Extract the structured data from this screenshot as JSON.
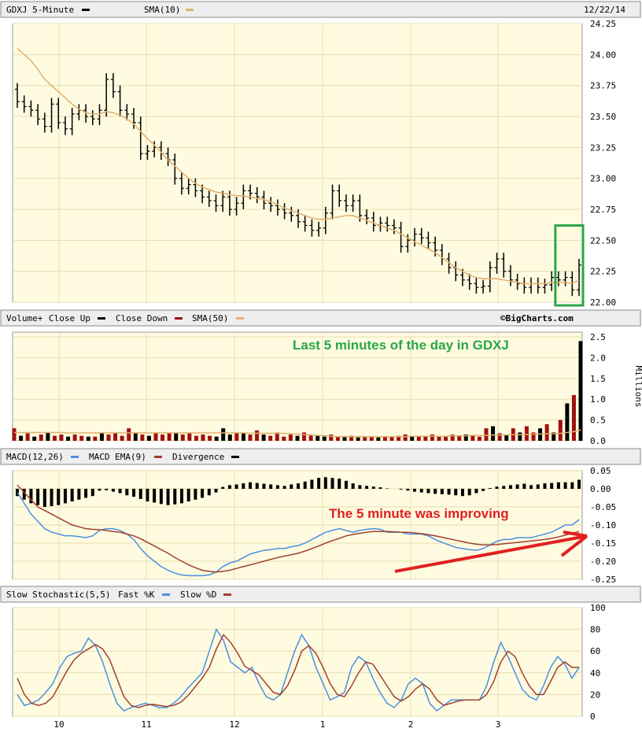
{
  "chart_data": [
    {
      "type": "ohlc",
      "header_label": "GDXJ 5-Minute",
      "sma_label": "SMA(10)",
      "date": "12/22/14",
      "y_ticks": [
        "24.25",
        "24.00",
        "23.75",
        "23.50",
        "23.25",
        "23.00",
        "22.75",
        "22.50",
        "22.25",
        "22.00"
      ],
      "ylim": [
        22.0,
        24.25
      ],
      "x_ticks": [
        "10",
        "11",
        "12",
        "1",
        "2",
        "3"
      ],
      "colors": {
        "bars": "#000000",
        "sma": "#e0b070",
        "panel_bg": "#fffbe0",
        "grid": "#ece4b8",
        "highlight": "#2aa64a"
      },
      "close": [
        23.62,
        23.58,
        23.55,
        23.48,
        23.42,
        23.6,
        23.45,
        23.4,
        23.52,
        23.55,
        23.5,
        23.48,
        23.55,
        23.8,
        23.7,
        23.55,
        23.52,
        23.45,
        23.2,
        23.22,
        23.25,
        23.2,
        23.15,
        23.0,
        22.92,
        22.95,
        22.9,
        22.85,
        22.82,
        22.78,
        22.85,
        22.75,
        22.8,
        22.9,
        22.88,
        22.85,
        22.8,
        22.78,
        22.75,
        22.72,
        22.7,
        22.65,
        22.62,
        22.58,
        22.6,
        22.72,
        22.9,
        22.82,
        22.78,
        22.82,
        22.7,
        22.68,
        22.62,
        22.64,
        22.62,
        22.6,
        22.45,
        22.5,
        22.55,
        22.52,
        22.48,
        22.42,
        22.35,
        22.28,
        22.22,
        22.18,
        22.15,
        22.12,
        22.13,
        22.28,
        22.35,
        22.25,
        22.18,
        22.15,
        22.12,
        22.15,
        22.12,
        22.14,
        22.2,
        22.18,
        22.2,
        22.1,
        22.3
      ],
      "sma": [
        24.05,
        24.0,
        23.95,
        23.88,
        23.8,
        23.75,
        23.7,
        23.65,
        23.6,
        23.56,
        23.53,
        23.52,
        23.52,
        23.54,
        23.53,
        23.51,
        23.48,
        23.44,
        23.38,
        23.32,
        23.27,
        23.21,
        23.15,
        23.1,
        23.05,
        23.0,
        22.96,
        22.93,
        22.91,
        22.89,
        22.88,
        22.87,
        22.86,
        22.86,
        22.85,
        22.84,
        22.83,
        22.81,
        22.79,
        22.76,
        22.74,
        22.72,
        22.7,
        22.68,
        22.67,
        22.67,
        22.68,
        22.69,
        22.7,
        22.7,
        22.68,
        22.66,
        22.64,
        22.62,
        22.6,
        22.58,
        22.55,
        22.52,
        22.49,
        22.46,
        22.43,
        22.4,
        22.36,
        22.32,
        22.28,
        22.25,
        22.22,
        22.2,
        22.19,
        22.19,
        22.19,
        22.18,
        22.17,
        22.16,
        22.15,
        22.15,
        22.15,
        22.15,
        22.16,
        22.16,
        22.16,
        22.15,
        22.18
      ],
      "annotation": "",
      "highlight_box": {
        "from_bar": 79,
        "to_bar": 82,
        "low": 22.0,
        "high": 22.62
      }
    },
    {
      "type": "volume",
      "header_label": "Volume+",
      "legend": [
        "Close Up",
        "Close Down",
        "SMA(50)"
      ],
      "watermark": "©BigCharts.com",
      "y_ticks": [
        "2.5",
        "2.0",
        "1.5",
        "1.0",
        "0.5",
        "0.0"
      ],
      "ylim": [
        0,
        2.5
      ],
      "units": "Millions",
      "annotation": "Last 5 minutes of the day in GDXJ",
      "colors": {
        "up": "#000000",
        "down": "#a01010",
        "sma": "#e0b070"
      },
      "values": [
        0.3,
        0.12,
        0.18,
        0.1,
        0.15,
        0.2,
        0.12,
        0.15,
        0.1,
        0.15,
        0.12,
        0.1,
        0.1,
        0.2,
        0.15,
        0.18,
        0.12,
        0.3,
        0.2,
        0.15,
        0.12,
        0.2,
        0.15,
        0.18,
        0.2,
        0.15,
        0.18,
        0.12,
        0.15,
        0.12,
        0.1,
        0.3,
        0.15,
        0.2,
        0.18,
        0.15,
        0.25,
        0.15,
        0.12,
        0.2,
        0.1,
        0.15,
        0.12,
        0.2,
        0.15,
        0.12,
        0.1,
        0.15,
        0.1,
        0.1,
        0.12,
        0.08,
        0.1,
        0.1,
        0.08,
        0.1,
        0.1,
        0.12,
        0.15,
        0.12,
        0.12,
        0.1,
        0.15,
        0.12,
        0.1,
        0.15,
        0.12,
        0.15,
        0.12,
        0.1,
        0.3,
        0.35,
        0.18,
        0.15,
        0.3,
        0.2,
        0.35,
        0.2,
        0.3,
        0.4,
        0.2,
        0.5,
        0.9,
        1.1,
        2.4
      ],
      "up_flags": [
        0,
        1,
        0,
        1,
        0,
        1,
        0,
        0,
        1,
        0,
        0,
        1,
        0,
        1,
        0,
        0,
        0,
        0,
        1,
        0,
        1,
        0,
        0,
        0,
        1,
        0,
        0,
        0,
        0,
        0,
        1,
        1,
        1,
        0,
        1,
        0,
        0,
        1,
        0,
        0,
        0,
        0,
        1,
        0,
        0,
        1,
        1,
        0,
        0,
        1,
        0,
        1,
        0,
        0,
        1,
        0,
        0,
        0,
        0,
        1,
        0,
        0,
        0,
        0,
        0,
        0,
        0,
        1,
        0,
        0,
        0,
        1,
        0,
        1,
        0,
        1,
        0,
        0,
        1,
        0,
        1,
        0,
        1,
        0,
        1
      ],
      "sma": [
        0.2,
        0.2,
        0.2,
        0.2,
        0.2,
        0.2,
        0.2,
        0.2,
        0.19,
        0.19,
        0.19,
        0.19,
        0.19,
        0.19,
        0.19,
        0.19,
        0.19,
        0.19,
        0.19,
        0.19,
        0.19,
        0.19,
        0.19,
        0.19,
        0.19,
        0.19,
        0.19,
        0.19,
        0.19,
        0.19,
        0.19,
        0.19,
        0.19,
        0.19,
        0.19,
        0.18,
        0.18,
        0.18,
        0.18,
        0.18,
        0.18,
        0.17,
        0.16,
        0.15,
        0.14,
        0.13,
        0.12,
        0.11,
        0.1,
        0.1,
        0.1,
        0.1,
        0.1,
        0.1,
        0.1,
        0.1,
        0.1,
        0.1,
        0.1,
        0.11,
        0.11,
        0.11,
        0.11,
        0.11,
        0.11,
        0.12,
        0.12,
        0.12,
        0.13,
        0.13,
        0.13,
        0.14,
        0.14,
        0.14,
        0.15,
        0.15,
        0.15,
        0.16,
        0.16,
        0.17,
        0.17,
        0.18,
        0.2,
        0.22,
        0.26
      ]
    },
    {
      "type": "macd",
      "header_label": "MACD(12,26)",
      "legend": [
        "MACD EMA(9)",
        "Divergence"
      ],
      "y_ticks": [
        "0.05",
        "0.00",
        "-0.05",
        "-0.10",
        "-0.15",
        "-0.20",
        "-0.25"
      ],
      "ylim": [
        -0.25,
        0.05
      ],
      "annotation": "The 5 minute was improving",
      "colors": {
        "macd": "#4a90e0",
        "ema": "#a04030",
        "divergence": "#000000",
        "arrow": "#e02020"
      },
      "macd": [
        -0.01,
        -0.04,
        -0.07,
        -0.09,
        -0.11,
        -0.12,
        -0.125,
        -0.13,
        -0.13,
        -0.132,
        -0.135,
        -0.13,
        -0.115,
        -0.11,
        -0.11,
        -0.115,
        -0.125,
        -0.14,
        -0.165,
        -0.185,
        -0.2,
        -0.215,
        -0.225,
        -0.233,
        -0.238,
        -0.24,
        -0.24,
        -0.24,
        -0.238,
        -0.23,
        -0.215,
        -0.205,
        -0.2,
        -0.19,
        -0.18,
        -0.175,
        -0.17,
        -0.168,
        -0.165,
        -0.165,
        -0.16,
        -0.157,
        -0.15,
        -0.14,
        -0.13,
        -0.12,
        -0.115,
        -0.11,
        -0.115,
        -0.12,
        -0.115,
        -0.112,
        -0.11,
        -0.112,
        -0.12,
        -0.12,
        -0.12,
        -0.125,
        -0.125,
        -0.125,
        -0.13,
        -0.14,
        -0.148,
        -0.155,
        -0.162,
        -0.165,
        -0.168,
        -0.17,
        -0.165,
        -0.155,
        -0.145,
        -0.14,
        -0.14,
        -0.135,
        -0.135,
        -0.135,
        -0.13,
        -0.125,
        -0.12,
        -0.11,
        -0.1,
        -0.1,
        -0.085
      ],
      "ema": [
        0.01,
        -0.01,
        -0.03,
        -0.05,
        -0.06,
        -0.07,
        -0.08,
        -0.09,
        -0.1,
        -0.105,
        -0.11,
        -0.112,
        -0.113,
        -0.115,
        -0.118,
        -0.12,
        -0.125,
        -0.13,
        -0.138,
        -0.148,
        -0.158,
        -0.168,
        -0.178,
        -0.19,
        -0.2,
        -0.21,
        -0.218,
        -0.225,
        -0.228,
        -0.23,
        -0.228,
        -0.225,
        -0.22,
        -0.215,
        -0.21,
        -0.205,
        -0.2,
        -0.195,
        -0.19,
        -0.186,
        -0.182,
        -0.178,
        -0.172,
        -0.165,
        -0.158,
        -0.15,
        -0.143,
        -0.137,
        -0.13,
        -0.126,
        -0.123,
        -0.12,
        -0.118,
        -0.118,
        -0.118,
        -0.119,
        -0.12,
        -0.12,
        -0.122,
        -0.124,
        -0.127,
        -0.13,
        -0.134,
        -0.138,
        -0.142,
        -0.146,
        -0.15,
        -0.153,
        -0.155,
        -0.155,
        -0.154,
        -0.152,
        -0.15,
        -0.148,
        -0.146,
        -0.144,
        -0.142,
        -0.14,
        -0.137,
        -0.133,
        -0.128,
        -0.123,
        -0.118
      ],
      "divergence": [
        -0.02,
        -0.03,
        -0.04,
        -0.045,
        -0.05,
        -0.048,
        -0.045,
        -0.04,
        -0.035,
        -0.03,
        -0.025,
        -0.02,
        -0.005,
        -0.004,
        -0.008,
        -0.012,
        -0.018,
        -0.022,
        -0.028,
        -0.035,
        -0.038,
        -0.042,
        -0.045,
        -0.043,
        -0.04,
        -0.035,
        -0.03,
        -0.025,
        -0.018,
        -0.01,
        0.005,
        0.01,
        0.012,
        0.015,
        0.018,
        0.016,
        0.014,
        0.012,
        0.01,
        0.008,
        0.012,
        0.015,
        0.02,
        0.025,
        0.03,
        0.032,
        0.03,
        0.028,
        0.022,
        0.015,
        0.01,
        0.008,
        0.006,
        0.004,
        0.001,
        0.0,
        -0.002,
        -0.005,
        -0.008,
        -0.01,
        -0.012,
        -0.014,
        -0.015,
        -0.016,
        -0.018,
        -0.02,
        -0.018,
        -0.012,
        -0.006,
        0.002,
        0.006,
        0.008,
        0.01,
        0.012,
        0.014,
        0.01,
        0.012,
        0.015,
        0.016,
        0.018,
        0.018,
        0.018,
        0.025
      ]
    },
    {
      "type": "line",
      "header_label": "Slow Stochastic(5,5)",
      "legend": [
        "Fast %K",
        "Slow %D"
      ],
      "y_ticks": [
        "100",
        "80",
        "60",
        "40",
        "20",
        "0"
      ],
      "ylim": [
        0,
        100
      ],
      "colors": {
        "k": "#4a90e0",
        "d": "#a04030"
      },
      "k": [
        20,
        10,
        12,
        15,
        22,
        30,
        45,
        55,
        58,
        60,
        72,
        65,
        50,
        30,
        12,
        5,
        8,
        10,
        12,
        10,
        8,
        8,
        12,
        18,
        26,
        33,
        40,
        60,
        80,
        70,
        50,
        45,
        40,
        45,
        30,
        18,
        15,
        20,
        40,
        60,
        75,
        65,
        45,
        30,
        15,
        18,
        22,
        45,
        55,
        50,
        35,
        22,
        12,
        8,
        15,
        30,
        35,
        30,
        12,
        5,
        10,
        15,
        15,
        15,
        15,
        15,
        28,
        50,
        68,
        55,
        40,
        25,
        18,
        15,
        28,
        45,
        55,
        48,
        35,
        45
      ],
      "d": [
        35,
        20,
        12,
        10,
        12,
        18,
        30,
        42,
        52,
        58,
        62,
        66,
        62,
        52,
        35,
        18,
        10,
        8,
        10,
        11,
        10,
        9,
        10,
        13,
        19,
        27,
        35,
        45,
        62,
        75,
        68,
        58,
        46,
        42,
        38,
        30,
        22,
        20,
        28,
        42,
        60,
        65,
        58,
        45,
        30,
        20,
        18,
        28,
        40,
        50,
        48,
        38,
        28,
        18,
        14,
        18,
        25,
        30,
        25,
        15,
        10,
        12,
        14,
        15,
        15,
        15,
        20,
        32,
        50,
        60,
        55,
        40,
        28,
        20,
        20,
        32,
        45,
        50,
        45,
        45
      ]
    }
  ]
}
